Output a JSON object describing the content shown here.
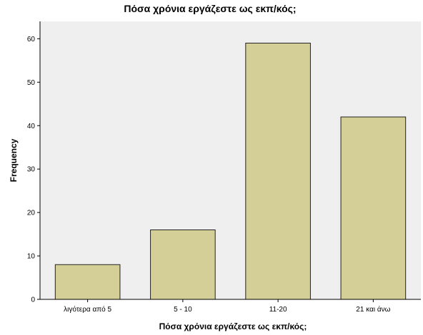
{
  "chart_data": {
    "type": "bar",
    "title": "Πόσα χρόνια εργάζεστε ως εκπ/κός;",
    "xlabel": "Πόσα χρόνια εργάζεστε ως εκπ/κός;",
    "ylabel": "Frequency",
    "categories": [
      "λιγότερα από 5",
      "5 - 10",
      "11-20",
      "21 και άνω"
    ],
    "values": [
      8,
      16,
      59,
      42
    ],
    "ylim": [
      0,
      64
    ],
    "yticks": [
      0,
      10,
      20,
      30,
      40,
      50,
      60
    ],
    "grid": false,
    "legend": "none",
    "colors": {
      "bar_fill": "#d4cf97",
      "bar_stroke": "#222222",
      "plot_bg": "#efefef",
      "axis": "#000000"
    }
  }
}
